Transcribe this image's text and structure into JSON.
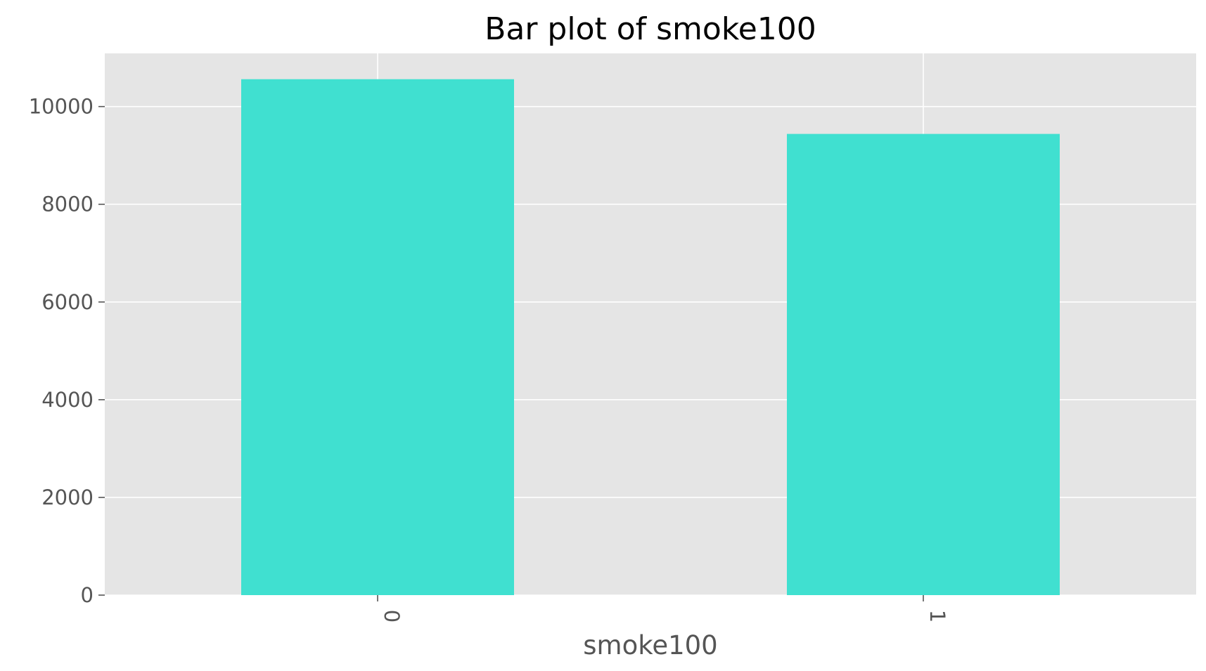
{
  "chart_data": {
    "type": "bar",
    "title": "Bar plot of smoke100",
    "xlabel": "smoke100",
    "ylabel": "",
    "categories": [
      "0",
      "1"
    ],
    "values": [
      10560,
      9440
    ],
    "ylim": [
      0,
      11088
    ],
    "yticks": [
      0,
      2000,
      4000,
      6000,
      8000,
      10000
    ],
    "ytick_labels": [
      "0",
      "2000",
      "4000",
      "6000",
      "8000",
      "10000"
    ],
    "grid": true,
    "legend": "none",
    "colors": {
      "bar": "#40e0d0",
      "plot_background": "#e5e5e5",
      "grid": "#ffffff",
      "tick_text": "#555555",
      "title_text": "#000000"
    }
  }
}
